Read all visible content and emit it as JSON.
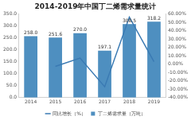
{
  "chart_data": {
    "type": "bar",
    "title": "2014-2019年中国丁二烯需求量统计",
    "categories": [
      "2014",
      "2015",
      "2016",
      "2017",
      "2018",
      "2019"
    ],
    "series": [
      {
        "name": "丁二烯需求量（万吨）",
        "type": "bar",
        "color": "#4e8fc0",
        "values": [
          258.0,
          251.6,
          270.0,
          197.1,
          308.5,
          318.2
        ],
        "value_labels": [
          "258.0",
          "251.6",
          "270.0",
          "197.1",
          "308.5",
          "318.2"
        ]
      },
      {
        "name": "同比增长（%）",
        "type": "line",
        "color": "#3a7ab3",
        "axis": "y2",
        "values": [
          null,
          -2.5,
          7.3,
          -27.0,
          56.5,
          3.1
        ]
      }
    ],
    "ylim": [
      0,
      350
    ],
    "yticks": [
      {
        "value": 0,
        "label": "0.0"
      },
      {
        "value": 50,
        "label": "50.0"
      },
      {
        "value": 100,
        "label": "100.0"
      },
      {
        "value": 150,
        "label": "150.0"
      },
      {
        "value": 200,
        "label": "200.0"
      },
      {
        "value": 250,
        "label": "250.0"
      },
      {
        "value": 300,
        "label": "300.0"
      },
      {
        "value": 350,
        "label": "350.0"
      }
    ],
    "y2lim": [
      -40,
      60
    ],
    "y2ticks": [
      {
        "value": -40,
        "label": "-40.00%"
      },
      {
        "value": -30,
        "label": "-30.00%"
      },
      {
        "value": -20,
        "label": "-20.00%"
      },
      {
        "value": -10,
        "label": "-10.00%"
      },
      {
        "value": 0,
        "label": "0.00%"
      },
      {
        "value": 10,
        "label": "10.00%"
      },
      {
        "value": 20,
        "label": "20.00%"
      },
      {
        "value": 30,
        "label": "30.00%"
      },
      {
        "value": 40,
        "label": "40.00%"
      },
      {
        "value": 50,
        "label": "50.00%"
      },
      {
        "value": 60,
        "label": "60.00%"
      }
    ],
    "grid": false,
    "legend": "bottom",
    "data_labels": true
  }
}
